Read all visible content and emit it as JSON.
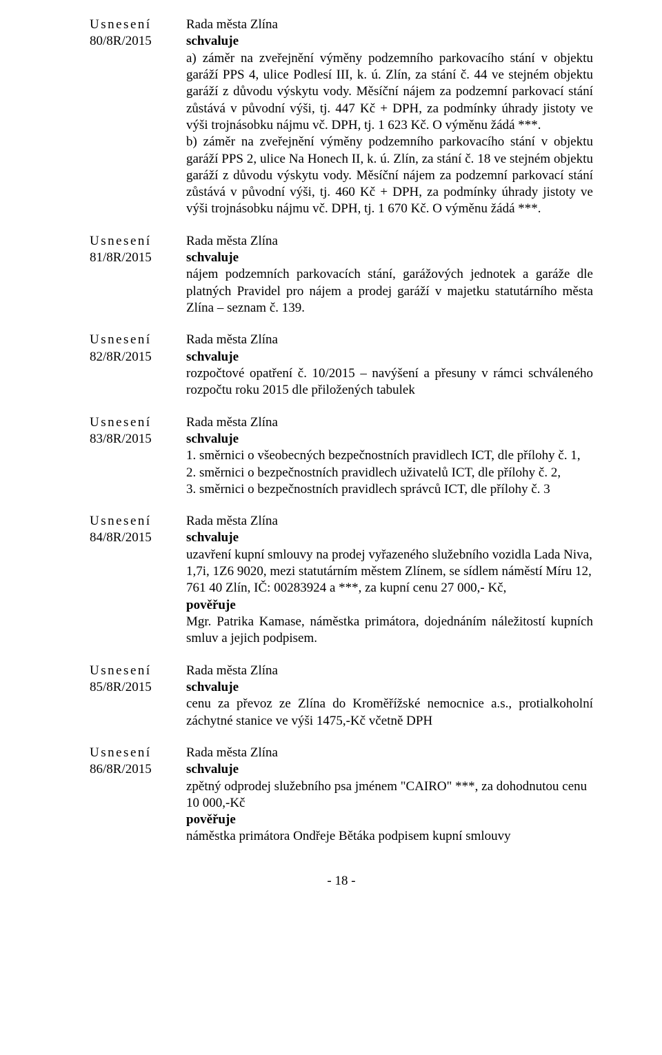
{
  "usn_label": "Usnesení",
  "rada_label": "Rada města Zlína",
  "schvaluje_label": "schvaluje",
  "poveruje_label": "pověřuje",
  "items": {
    "i80": {
      "num": "80/8R/2015",
      "body": "a) záměr na zveřejnění výměny podzemního parkovacího stání v objektu garáží PPS 4, ulice Podlesí III, k. ú. Zlín, za stání č. 44 ve stejném objektu garáží z důvodu výskytu vody. Měsíční nájem za podzemní parkovací stání zůstává v původní výši, tj. 447 Kč + DPH, za podmínky úhrady jistoty ve výši trojnásobku nájmu vč. DPH, tj. 1 623 Kč. O výměnu žádá ***.",
      "body_b": "b) záměr na zveřejnění výměny podzemního parkovacího stání v objektu garáží PPS 2, ulice Na Honech II, k. ú. Zlín, za stání č. 18 ve stejném objektu garáží z důvodu výskytu vody. Měsíční nájem za podzemní parkovací stání zůstává v původní výši, tj. 460 Kč + DPH, za podmínky úhrady jistoty ve výši trojnásobku nájmu vč. DPH, tj. 1 670 Kč. O výměnu žádá ***."
    },
    "i81": {
      "num": "81/8R/2015",
      "body": "nájem podzemních parkovacích stání, garážových jednotek a garáže dle platných Pravidel pro nájem a prodej garáží v majetku statutárního města Zlína – seznam č. 139."
    },
    "i82": {
      "num": "82/8R/2015",
      "body": "rozpočtové opatření č. 10/2015 – navýšení a přesuny v rámci schváleného rozpočtu roku 2015 dle přiložených tabulek"
    },
    "i83": {
      "num": "83/8R/2015",
      "l1": "1. směrnici o všeobecných bezpečnostních pravidlech ICT, dle přílohy č. 1,",
      "l2": "2. směrnici o bezpečnostních pravidlech uživatelů ICT, dle přílohy č. 2,",
      "l3": "3. směrnici o bezpečnostních pravidlech správců ICT, dle přílohy č. 3"
    },
    "i84": {
      "num": "84/8R/2015",
      "body": "uzavření kupní smlouvy na prodej vyřazeného služebního vozidla Lada Niva, 1,7i, 1Z6 9020, mezi statutárním městem Zlínem, se sídlem náměstí Míru 12, 761 40 Zlín, IČ: 00283924 a ***, za kupní cenu 27 000,- Kč,",
      "p2": "Mgr. Patrika Kamase, náměstka primátora, dojednáním náležitostí kupních smluv a jejich podpisem."
    },
    "i85": {
      "num": "85/8R/2015",
      "body": "cenu za převoz ze Zlína do Kroměřížské nemocnice a.s., protialkoholní záchytné stanice ve výši 1475,-Kč včetně DPH"
    },
    "i86": {
      "num": "86/8R/2015",
      "body": "zpětný odprodej služebního psa jménem \"CAIRO\" ***, za dohodnutou cenu 10 000,-Kč",
      "p2": "náměstka primátora Ondřeje Bětáka podpisem kupní smlouvy"
    }
  },
  "page_num": "- 18 -"
}
